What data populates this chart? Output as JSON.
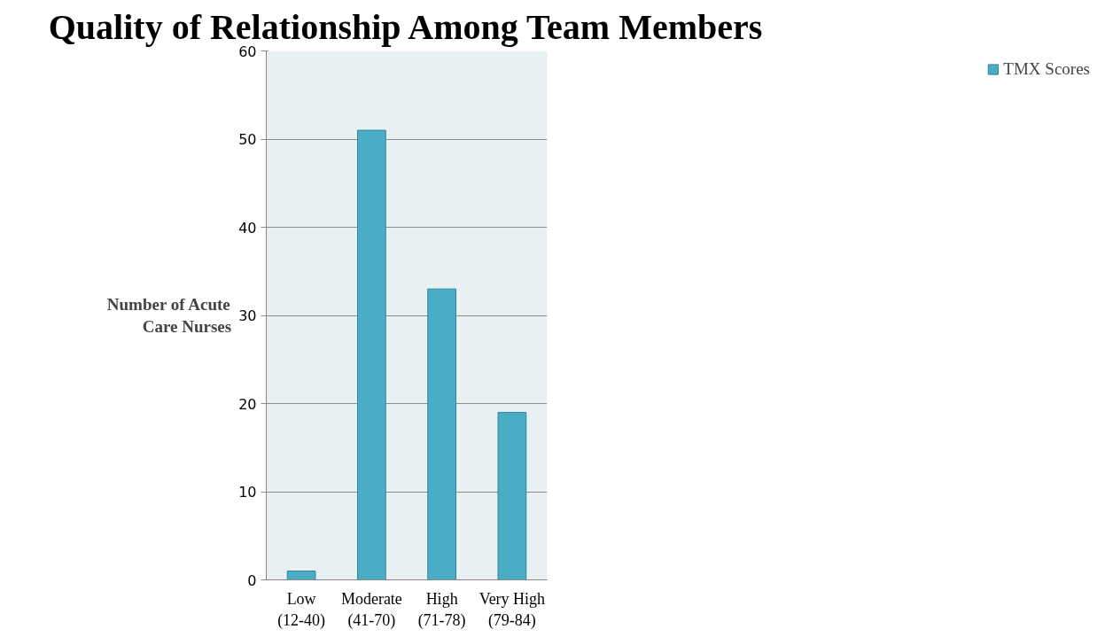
{
  "chart_data": {
    "type": "bar",
    "title": "Quality of Relationship Among Team Members",
    "ylabel": "Number of Acute\nCare Nurses",
    "categories": [
      "Low\n(12-40)",
      "Moderate\n(41-70)",
      "High\n(71-78)",
      "Very High\n(79-84)"
    ],
    "series": [
      {
        "name": "TMX Scores",
        "color": "#4bacc6",
        "values": [
          1,
          51,
          33,
          19
        ]
      }
    ],
    "ylim": [
      0,
      60
    ],
    "yticks": [
      0,
      10,
      20,
      30,
      40,
      50,
      60
    ],
    "grid": "y",
    "legend": "right"
  }
}
